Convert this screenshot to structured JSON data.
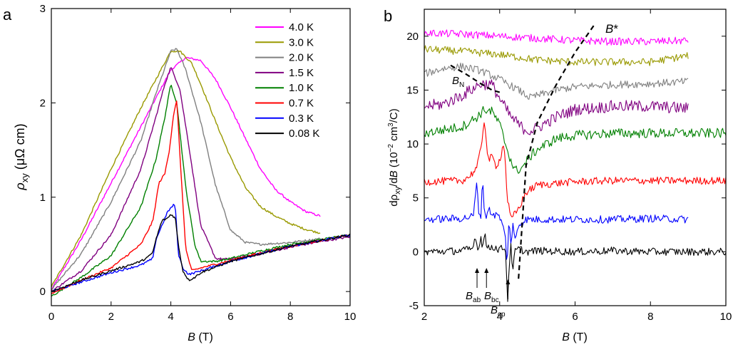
{
  "chart_data": [
    {
      "panel_label": "a",
      "type": "line",
      "xlabel_sym": "B",
      "xlabel_unit": " (T)",
      "ylabel_sym": "ρ",
      "ylabel_sub": "xy",
      "ylabel_unit": " (μΩ cm)",
      "xlim": [
        0,
        10
      ],
      "ylim": [
        -0.15,
        3
      ],
      "xticks": [
        0,
        2,
        4,
        6,
        8,
        10
      ],
      "yticks": [
        0,
        1,
        2,
        3
      ],
      "legend_placement": "top-right",
      "series": [
        {
          "name": "4.0 K",
          "color": "#ff00ff",
          "x": [
            0,
            1,
            2,
            3,
            3.5,
            4,
            4.5,
            5,
            5.5,
            6,
            6.5,
            7,
            7.5,
            8,
            8.5,
            9
          ],
          "y": [
            0.02,
            0.55,
            1.15,
            1.75,
            2.05,
            2.35,
            2.48,
            2.45,
            2.25,
            1.95,
            1.62,
            1.3,
            1.08,
            0.95,
            0.85,
            0.8
          ]
        },
        {
          "name": "3.0 K",
          "color": "#999900",
          "x": [
            0,
            1,
            2,
            3,
            3.5,
            4,
            4.3,
            4.7,
            5,
            5.5,
            6,
            6.5,
            7,
            7.5,
            8,
            8.5,
            9
          ],
          "y": [
            0.05,
            0.6,
            1.3,
            1.95,
            2.25,
            2.55,
            2.55,
            2.42,
            2.2,
            1.8,
            1.42,
            1.1,
            0.9,
            0.8,
            0.72,
            0.66,
            0.62
          ]
        },
        {
          "name": "2.0 K",
          "color": "#808080",
          "x": [
            0,
            1,
            2,
            3,
            3.5,
            4,
            4.2,
            4.5,
            5,
            5.5,
            6,
            6.5,
            7,
            8,
            9
          ],
          "y": [
            0.02,
            0.4,
            0.95,
            1.6,
            2.1,
            2.55,
            2.57,
            2.35,
            1.8,
            1.12,
            0.65,
            0.52,
            0.5,
            0.52,
            0.56
          ]
        },
        {
          "name": "1.5 K",
          "color": "#800080",
          "x": [
            0,
            1,
            2,
            3,
            3.5,
            3.8,
            4,
            4.3,
            4.6,
            5,
            5.5,
            6,
            7,
            8,
            9,
            10
          ],
          "y": [
            0,
            0.22,
            0.6,
            1.3,
            1.85,
            2.2,
            2.38,
            2.15,
            1.55,
            0.7,
            0.35,
            0.34,
            0.4,
            0.47,
            0.53,
            0.58
          ]
        },
        {
          "name": "1.0 K",
          "color": "#008000",
          "x": [
            0,
            1,
            2,
            3,
            3.5,
            3.8,
            4,
            4.2,
            4.5,
            4.8,
            5,
            5.5,
            6,
            7,
            8,
            9,
            10
          ],
          "y": [
            -0.05,
            0.15,
            0.38,
            0.9,
            1.4,
            1.85,
            2.2,
            2.0,
            1.1,
            0.5,
            0.32,
            0.32,
            0.35,
            0.43,
            0.5,
            0.55,
            0.6
          ]
        },
        {
          "name": "0.7 K",
          "color": "#ff0000",
          "x": [
            0,
            1,
            2,
            3,
            3.4,
            3.6,
            3.8,
            3.95,
            4.1,
            4.2,
            4.35,
            4.5,
            4.7,
            5,
            6,
            7,
            8,
            9,
            10
          ],
          "y": [
            -0.02,
            0.12,
            0.25,
            0.5,
            0.75,
            1.15,
            1.25,
            1.5,
            1.9,
            2.02,
            1.2,
            0.45,
            0.22,
            0.25,
            0.33,
            0.41,
            0.48,
            0.54,
            0.6
          ]
        },
        {
          "name": "0.3 K",
          "color": "#0000ff",
          "x": [
            0,
            1,
            2,
            3,
            3.4,
            3.5,
            3.7,
            3.9,
            4.1,
            4.15,
            4.25,
            4.4,
            4.6,
            5,
            6,
            7,
            8,
            9,
            10
          ],
          "y": [
            0,
            0.1,
            0.2,
            0.28,
            0.35,
            0.55,
            0.7,
            0.85,
            0.92,
            0.9,
            0.4,
            0.25,
            0.18,
            0.22,
            0.32,
            0.4,
            0.48,
            0.54,
            0.6
          ]
        },
        {
          "name": "0.08 K",
          "color": "#000000",
          "x": [
            0,
            1,
            2,
            3,
            3.3,
            3.4,
            3.5,
            3.7,
            3.9,
            4.0,
            4.15,
            4.25,
            4.4,
            4.6,
            4.8,
            5,
            6,
            7,
            8,
            9,
            10
          ],
          "y": [
            0,
            0.12,
            0.22,
            0.32,
            0.38,
            0.42,
            0.55,
            0.75,
            0.78,
            0.82,
            0.78,
            0.5,
            0.22,
            0.12,
            0.15,
            0.2,
            0.32,
            0.4,
            0.48,
            0.54,
            0.6
          ]
        }
      ]
    },
    {
      "panel_label": "b",
      "type": "line",
      "xlabel_sym": "B",
      "xlabel_unit": " (T)",
      "ylabel_pre": "dρ",
      "ylabel_sub": "xy",
      "ylabel_mid": "/d",
      "ylabel_sym": "B",
      "ylabel_unit": " (10",
      "ylabel_exp1": "−2",
      "ylabel_unit2": " cm",
      "ylabel_exp2": "3",
      "ylabel_unit3": "/C)",
      "xlim": [
        2,
        10
      ],
      "ylim": [
        -5,
        22.5
      ],
      "xticks": [
        2,
        4,
        6,
        8,
        10
      ],
      "yticks": [
        -5,
        0,
        5,
        10,
        15,
        20
      ],
      "series": [
        {
          "name": "4.0 K",
          "color": "#ff00ff",
          "x": [
            2,
            3,
            4,
            5,
            6,
            7,
            8,
            9
          ],
          "y": [
            20.3,
            20.2,
            20.0,
            19.8,
            19.6,
            19.5,
            19.5,
            19.6
          ]
        },
        {
          "name": "3.0 K",
          "color": "#999900",
          "x": [
            2,
            3,
            4,
            5,
            6,
            7,
            8,
            9
          ],
          "y": [
            18.8,
            18.6,
            18.3,
            17.8,
            17.6,
            17.6,
            17.6,
            18.2
          ]
        },
        {
          "name": "2.0 K",
          "color": "#808080",
          "x": [
            2,
            2.5,
            3,
            3.5,
            4,
            4.5,
            4.8,
            5,
            5.5,
            6,
            7,
            8,
            9
          ],
          "y": [
            16.5,
            17.0,
            17.2,
            16.8,
            16.0,
            15.0,
            14.3,
            14.5,
            15.0,
            15.3,
            15.5,
            15.6,
            15.8
          ]
        },
        {
          "name": "1.5 K",
          "color": "#800080",
          "x": [
            2,
            2.5,
            3,
            3.5,
            3.8,
            4,
            4.3,
            4.6,
            4.8,
            5,
            5.5,
            6,
            7,
            8,
            9
          ],
          "y": [
            13.5,
            13.7,
            14.5,
            15.6,
            15.5,
            14.2,
            12.5,
            11.5,
            11.2,
            11.5,
            12.5,
            13.2,
            13.5,
            13.5,
            13.3
          ]
        },
        {
          "name": "1.0 K",
          "color": "#008000",
          "x": [
            2,
            2.5,
            3,
            3.4,
            3.6,
            3.8,
            4,
            4.2,
            4.4,
            4.6,
            4.8,
            5,
            5.5,
            6,
            7,
            8,
            9,
            10
          ],
          "y": [
            11.0,
            11.3,
            11.6,
            12.5,
            13.2,
            13.0,
            11.8,
            9.5,
            7.5,
            7.8,
            8.8,
            9.5,
            10.5,
            10.8,
            11.0,
            11.0,
            11.0,
            11.0
          ]
        },
        {
          "name": "0.7 K",
          "color": "#ff0000",
          "x": [
            2,
            3,
            3.2,
            3.4,
            3.5,
            3.6,
            3.65,
            3.7,
            3.8,
            3.9,
            4.0,
            4.1,
            4.15,
            4.2,
            4.3,
            4.5,
            4.7,
            5,
            6,
            7,
            8,
            9,
            10
          ],
          "y": [
            6.5,
            6.6,
            7.0,
            7.8,
            9.5,
            12.5,
            10.0,
            8.5,
            8.8,
            8.0,
            8.5,
            10.0,
            8.5,
            5.0,
            3.0,
            4.0,
            5.5,
            6.2,
            6.5,
            6.6,
            6.6,
            6.6,
            6.6
          ]
        },
        {
          "name": "0.3 K",
          "color": "#0000ff",
          "x": [
            2,
            3,
            3.3,
            3.4,
            3.45,
            3.5,
            3.55,
            3.6,
            3.65,
            3.7,
            3.8,
            4.0,
            4.15,
            4.2,
            4.25,
            4.3,
            4.35,
            4.4,
            4.5,
            4.7,
            5,
            6,
            7,
            8,
            9
          ],
          "y": [
            3.0,
            3.1,
            3.3,
            6.5,
            3.5,
            3.3,
            6.8,
            3.5,
            3.3,
            4.0,
            3.5,
            3.3,
            1.5,
            -1.5,
            3.5,
            0.5,
            2.5,
            1.0,
            2.5,
            3.0,
            3.0,
            3.0,
            3.0,
            3.1,
            3.0
          ]
        },
        {
          "name": "0.08 K",
          "color": "#000000",
          "x": [
            2,
            3,
            3.3,
            3.35,
            3.4,
            3.45,
            3.5,
            3.55,
            3.6,
            3.65,
            3.7,
            3.8,
            4.0,
            4.15,
            4.2,
            4.22,
            4.25,
            4.3,
            4.35,
            4.4,
            4.5,
            4.7,
            5,
            6,
            7,
            8,
            9,
            10
          ],
          "y": [
            0,
            0.1,
            0.3,
            1.8,
            0.5,
            0.2,
            1.6,
            0.3,
            2.0,
            0.5,
            0.3,
            0.5,
            0.2,
            0.5,
            -3.5,
            -5.0,
            -1.0,
            0.5,
            -2.0,
            0.0,
            0.3,
            0.0,
            0.1,
            0.0,
            0.1,
            0.0,
            0.0,
            0.0
          ]
        }
      ],
      "annotations": {
        "b_star_sym": "B",
        "b_star_mark": "*",
        "b_n_sym": "B",
        "b_n_sub": "N",
        "b_ab_sym": "B",
        "b_ab_sub": "ab",
        "b_bc_sym": "B",
        "b_bc_sub": "bc",
        "b_cp_sym": "B",
        "b_cp_sub": "cp",
        "dashed_b_n": {
          "x": [
            2.7,
            3.1,
            3.5,
            3.8,
            4.0
          ],
          "y": [
            17.3,
            16.5,
            15.6,
            15.0,
            14.8
          ]
        },
        "dashed_b_star": {
          "x": [
            4.5,
            4.7,
            5.0,
            5.5,
            6.0,
            6.5
          ],
          "y": [
            -2.5,
            8.0,
            12.0,
            15.5,
            18.5,
            21.0
          ]
        },
        "arrows_at_x": [
          3.4,
          3.65,
          4.22
        ]
      }
    }
  ]
}
